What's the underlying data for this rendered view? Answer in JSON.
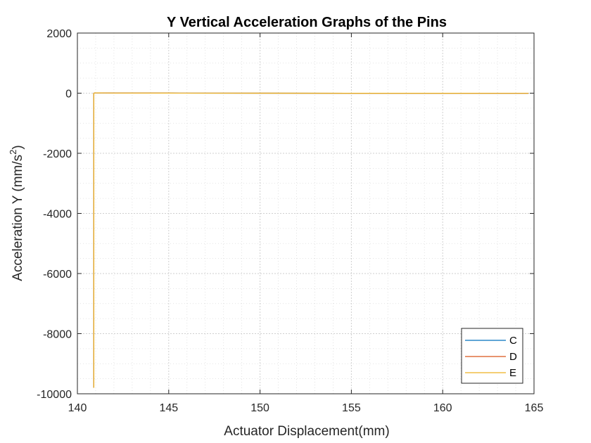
{
  "chart_data": {
    "type": "line",
    "title": "Y Vertical Acceleration Graphs of the Pins",
    "xlabel": "Actuator Displacement(mm)",
    "ylabel_main": "Acceleration Y (mm/s",
    "ylabel_sup": "2",
    "ylabel_tail": ")",
    "xlim": [
      140,
      165
    ],
    "ylim": [
      -10000,
      2000
    ],
    "xticks": [
      140,
      145,
      150,
      155,
      160,
      165
    ],
    "yticks": [
      -10000,
      -8000,
      -6000,
      -4000,
      -2000,
      0,
      2000
    ],
    "xtick_labels": [
      "140",
      "145",
      "150",
      "155",
      "160",
      "165"
    ],
    "ytick_labels": [
      "-10000",
      "-8000",
      "-6000",
      "-4000",
      "-2000",
      "0",
      "2000"
    ],
    "grid": true,
    "minor_grid": true,
    "legend_position": "bottom-right",
    "series": [
      {
        "name": "C",
        "color": "#0072BD",
        "x": [
          140.9,
          140.9,
          141.0,
          142.0,
          145.0,
          150.0,
          155.0,
          160.0,
          164.7
        ],
        "y": [
          -9800,
          0,
          10,
          5,
          2,
          0,
          -2,
          -3,
          -5
        ]
      },
      {
        "name": "D",
        "color": "#D95319",
        "x": [
          140.9,
          140.9,
          141.0,
          142.0,
          145.0,
          150.0,
          155.0,
          160.0,
          164.7
        ],
        "y": [
          -9800,
          0,
          10,
          5,
          2,
          0,
          -2,
          -3,
          -5
        ]
      },
      {
        "name": "E",
        "color": "#EDB120",
        "x": [
          140.9,
          140.9,
          141.0,
          142.0,
          145.0,
          150.0,
          155.0,
          160.0,
          164.7
        ],
        "y": [
          -9800,
          0,
          10,
          5,
          2,
          0,
          -2,
          -3,
          -5
        ]
      }
    ]
  }
}
